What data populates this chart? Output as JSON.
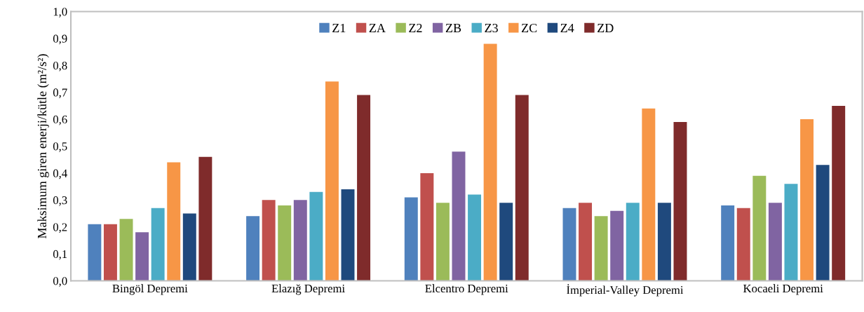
{
  "chart_data": {
    "type": "bar",
    "ylabel": "Maksimum giren enerji/kütle (m²/s²)",
    "categories": [
      "Bingöl Depremi",
      "Elazığ Depremi",
      "Elcentro Depremi",
      "İmperial-Valley Depremi",
      "Kocaeli Depremi"
    ],
    "series": [
      {
        "name": "Z1",
        "color": "#4f81bd",
        "values": [
          0.21,
          0.24,
          0.31,
          0.27,
          0.28
        ]
      },
      {
        "name": "ZA",
        "color": "#c0504d",
        "values": [
          0.21,
          0.3,
          0.4,
          0.29,
          0.27
        ]
      },
      {
        "name": "Z2",
        "color": "#9bbb59",
        "values": [
          0.23,
          0.28,
          0.29,
          0.24,
          0.39
        ]
      },
      {
        "name": "ZB",
        "color": "#8064a2",
        "values": [
          0.18,
          0.3,
          0.48,
          0.26,
          0.29
        ]
      },
      {
        "name": "Z3",
        "color": "#4bacc6",
        "values": [
          0.27,
          0.33,
          0.32,
          0.29,
          0.36
        ]
      },
      {
        "name": "ZC",
        "color": "#f79646",
        "values": [
          0.44,
          0.74,
          0.88,
          0.64,
          0.6
        ]
      },
      {
        "name": "Z4",
        "color": "#1f497d",
        "values": [
          0.25,
          0.34,
          0.29,
          0.29,
          0.43
        ]
      },
      {
        "name": "ZD",
        "color": "#7f2b2b",
        "values": [
          0.46,
          0.69,
          0.69,
          0.59,
          0.65
        ]
      }
    ],
    "ylim": [
      0,
      1
    ],
    "yticks": [
      {
        "value": 0,
        "label": "0,0"
      },
      {
        "value": 0.1,
        "label": "0,1"
      },
      {
        "value": 0.2,
        "label": "0,2"
      },
      {
        "value": 0.3,
        "label": "0,3"
      },
      {
        "value": 0.4,
        "label": "0,4"
      },
      {
        "value": 0.5,
        "label": "0,5"
      },
      {
        "value": 0.6,
        "label": "0,6"
      },
      {
        "value": 0.7,
        "label": "0,7"
      },
      {
        "value": 0.8,
        "label": "0,8"
      },
      {
        "value": 0.9,
        "label": "0,9"
      },
      {
        "value": 1,
        "label": "1,0"
      }
    ],
    "grid": false,
    "legend": "top"
  }
}
